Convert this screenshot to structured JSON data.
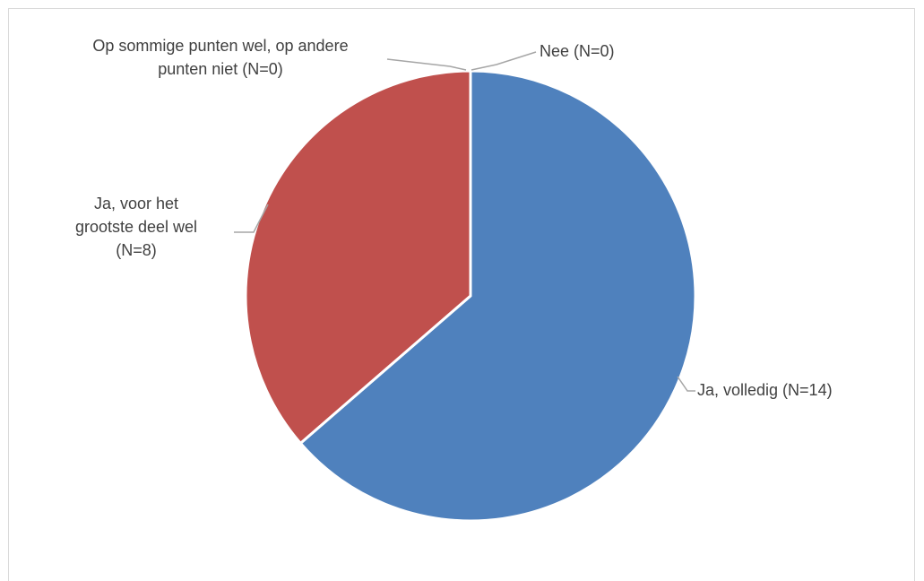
{
  "chart_data": {
    "type": "pie",
    "title": "",
    "slices": [
      {
        "label": [
          "Ja, volledig (N=14)"
        ],
        "value": 14,
        "color": "#4f81bd"
      },
      {
        "label": [
          "Ja, voor het",
          "grootste deel wel",
          "(N=8)"
        ],
        "value": 8,
        "color": "#c0504d"
      },
      {
        "label": [
          "Op sommige punten wel, op andere",
          "punten niet (N=0)"
        ],
        "value": 0,
        "color": "#9bbb59"
      },
      {
        "label": [
          "Nee (N=0)"
        ],
        "value": 0,
        "color": "#8064a2"
      }
    ],
    "legend": "none",
    "data_labels": "outside-with-leader-lines"
  }
}
